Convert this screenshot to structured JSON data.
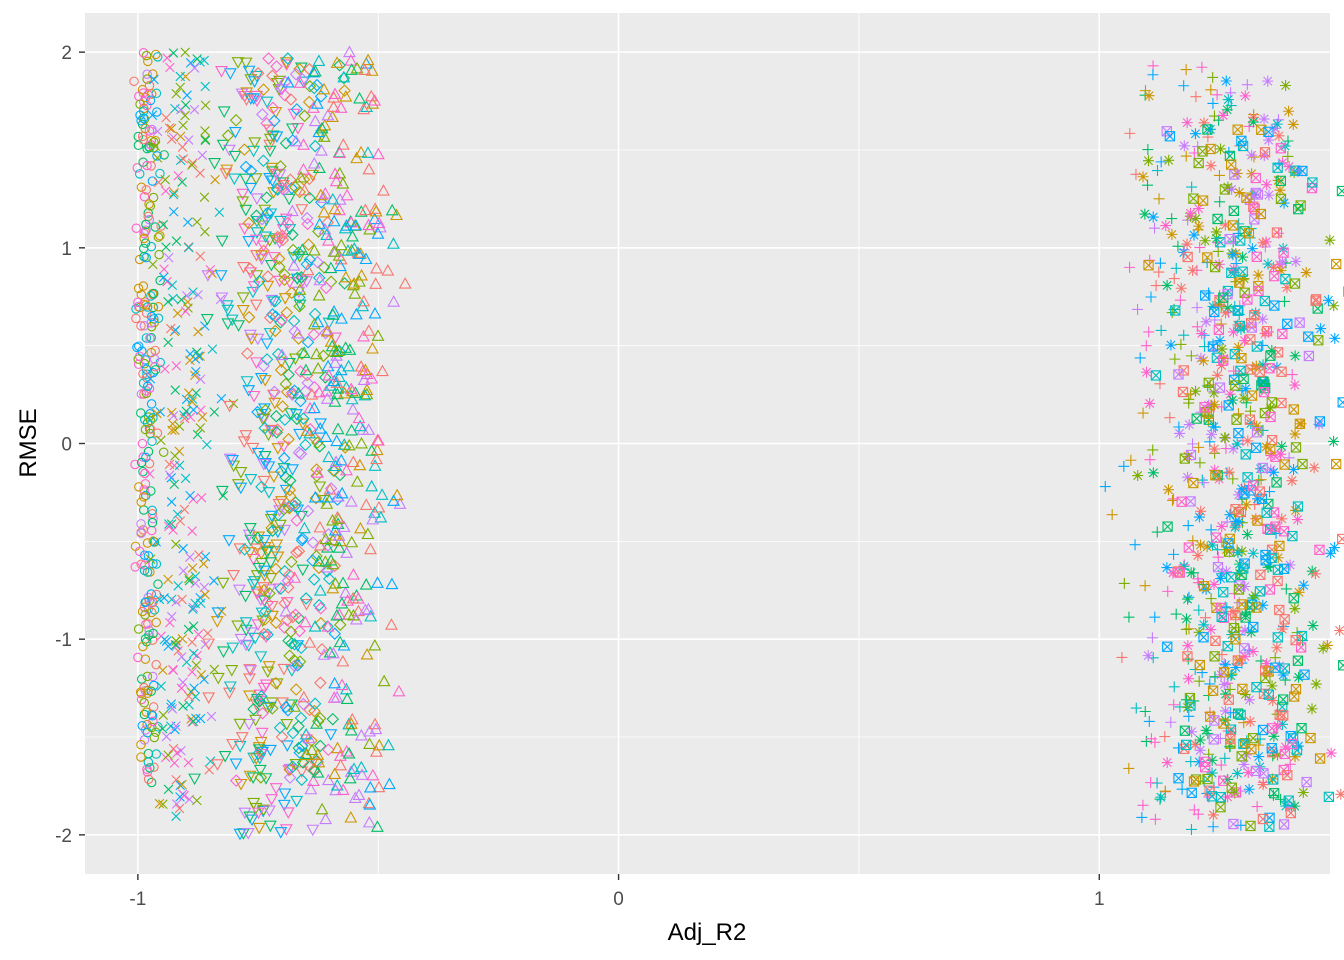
{
  "chart_data": {
    "type": "scatter",
    "title": "",
    "xlabel": "Adj_R2",
    "ylabel": "RMSE",
    "xlim": [
      -1.11,
      1.48
    ],
    "ylim": [
      -2.2,
      2.2
    ],
    "x_ticks": [
      -1,
      0,
      1
    ],
    "x_tick_labels": [
      "-1",
      "0",
      "1"
    ],
    "y_ticks": [
      -2,
      -1,
      0,
      1,
      2
    ],
    "y_tick_labels": [
      "-2",
      "-1",
      "0",
      "1",
      "2"
    ],
    "grid": true,
    "legend": "none",
    "colors": [
      "#F8766D",
      "#CD9600",
      "#7CAE00",
      "#00BE67",
      "#00BFC4",
      "#00A9FF",
      "#C77CFF",
      "#FF61CC"
    ],
    "clusters": [
      {
        "shape": "circle",
        "x_center": -0.98,
        "x_spread": 0.012,
        "y_range": [
          -1.75,
          2.0
        ],
        "count": 260
      },
      {
        "shape": "cross-x",
        "x_center": -0.9,
        "x_spread": 0.035,
        "y_range": [
          -1.92,
          2.0
        ],
        "count": 260
      },
      {
        "shape": "triangle-down",
        "x_center": -0.74,
        "x_spread": 0.05,
        "y_range": [
          -2.0,
          1.95
        ],
        "count": 330
      },
      {
        "shape": "diamond",
        "x_center": -0.68,
        "x_spread": 0.045,
        "y_range": [
          -1.75,
          2.0
        ],
        "count": 270
      },
      {
        "shape": "triangle-up",
        "x_center": -0.57,
        "x_spread": 0.05,
        "y_range": [
          -1.98,
          2.0
        ],
        "count": 360
      },
      {
        "shape": "plus",
        "x_center": 1.22,
        "x_spread": 0.09,
        "y_range": [
          -1.98,
          1.94
        ],
        "count": 280
      },
      {
        "shape": "asterisk",
        "x_center": 1.3,
        "x_spread": 0.09,
        "y_range": [
          -1.9,
          1.9
        ],
        "count": 300
      },
      {
        "shape": "square-cross",
        "x_center": 1.32,
        "x_spread": 0.08,
        "y_range": [
          -1.98,
          1.63
        ],
        "count": 320
      }
    ]
  }
}
